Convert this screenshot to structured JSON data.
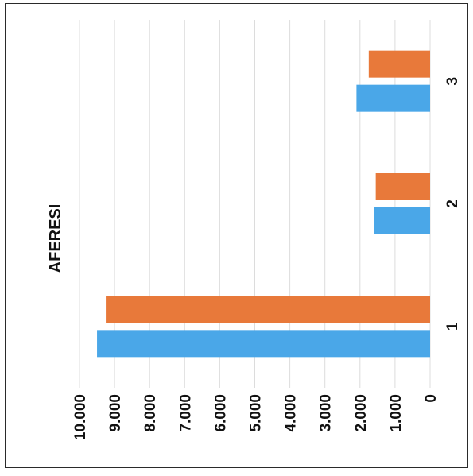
{
  "chart_data": {
    "type": "bar",
    "title": "AFERESI",
    "categories": [
      "1",
      "2",
      "3"
    ],
    "series": [
      {
        "values": [
          9500,
          1600,
          2100
        ],
        "color": "#4aa7e8"
      },
      {
        "values": [
          9250,
          1550,
          1750
        ],
        "color": "#e8793a"
      }
    ],
    "ylim": [
      0,
      10000
    ],
    "yticks": [
      "0",
      "1.000",
      "2.000",
      "3.000",
      "4.000",
      "5.000",
      "6.000",
      "7.000",
      "8.000",
      "9.000",
      "10.000"
    ],
    "grid": true,
    "orientation": "rotated-90-cw"
  }
}
